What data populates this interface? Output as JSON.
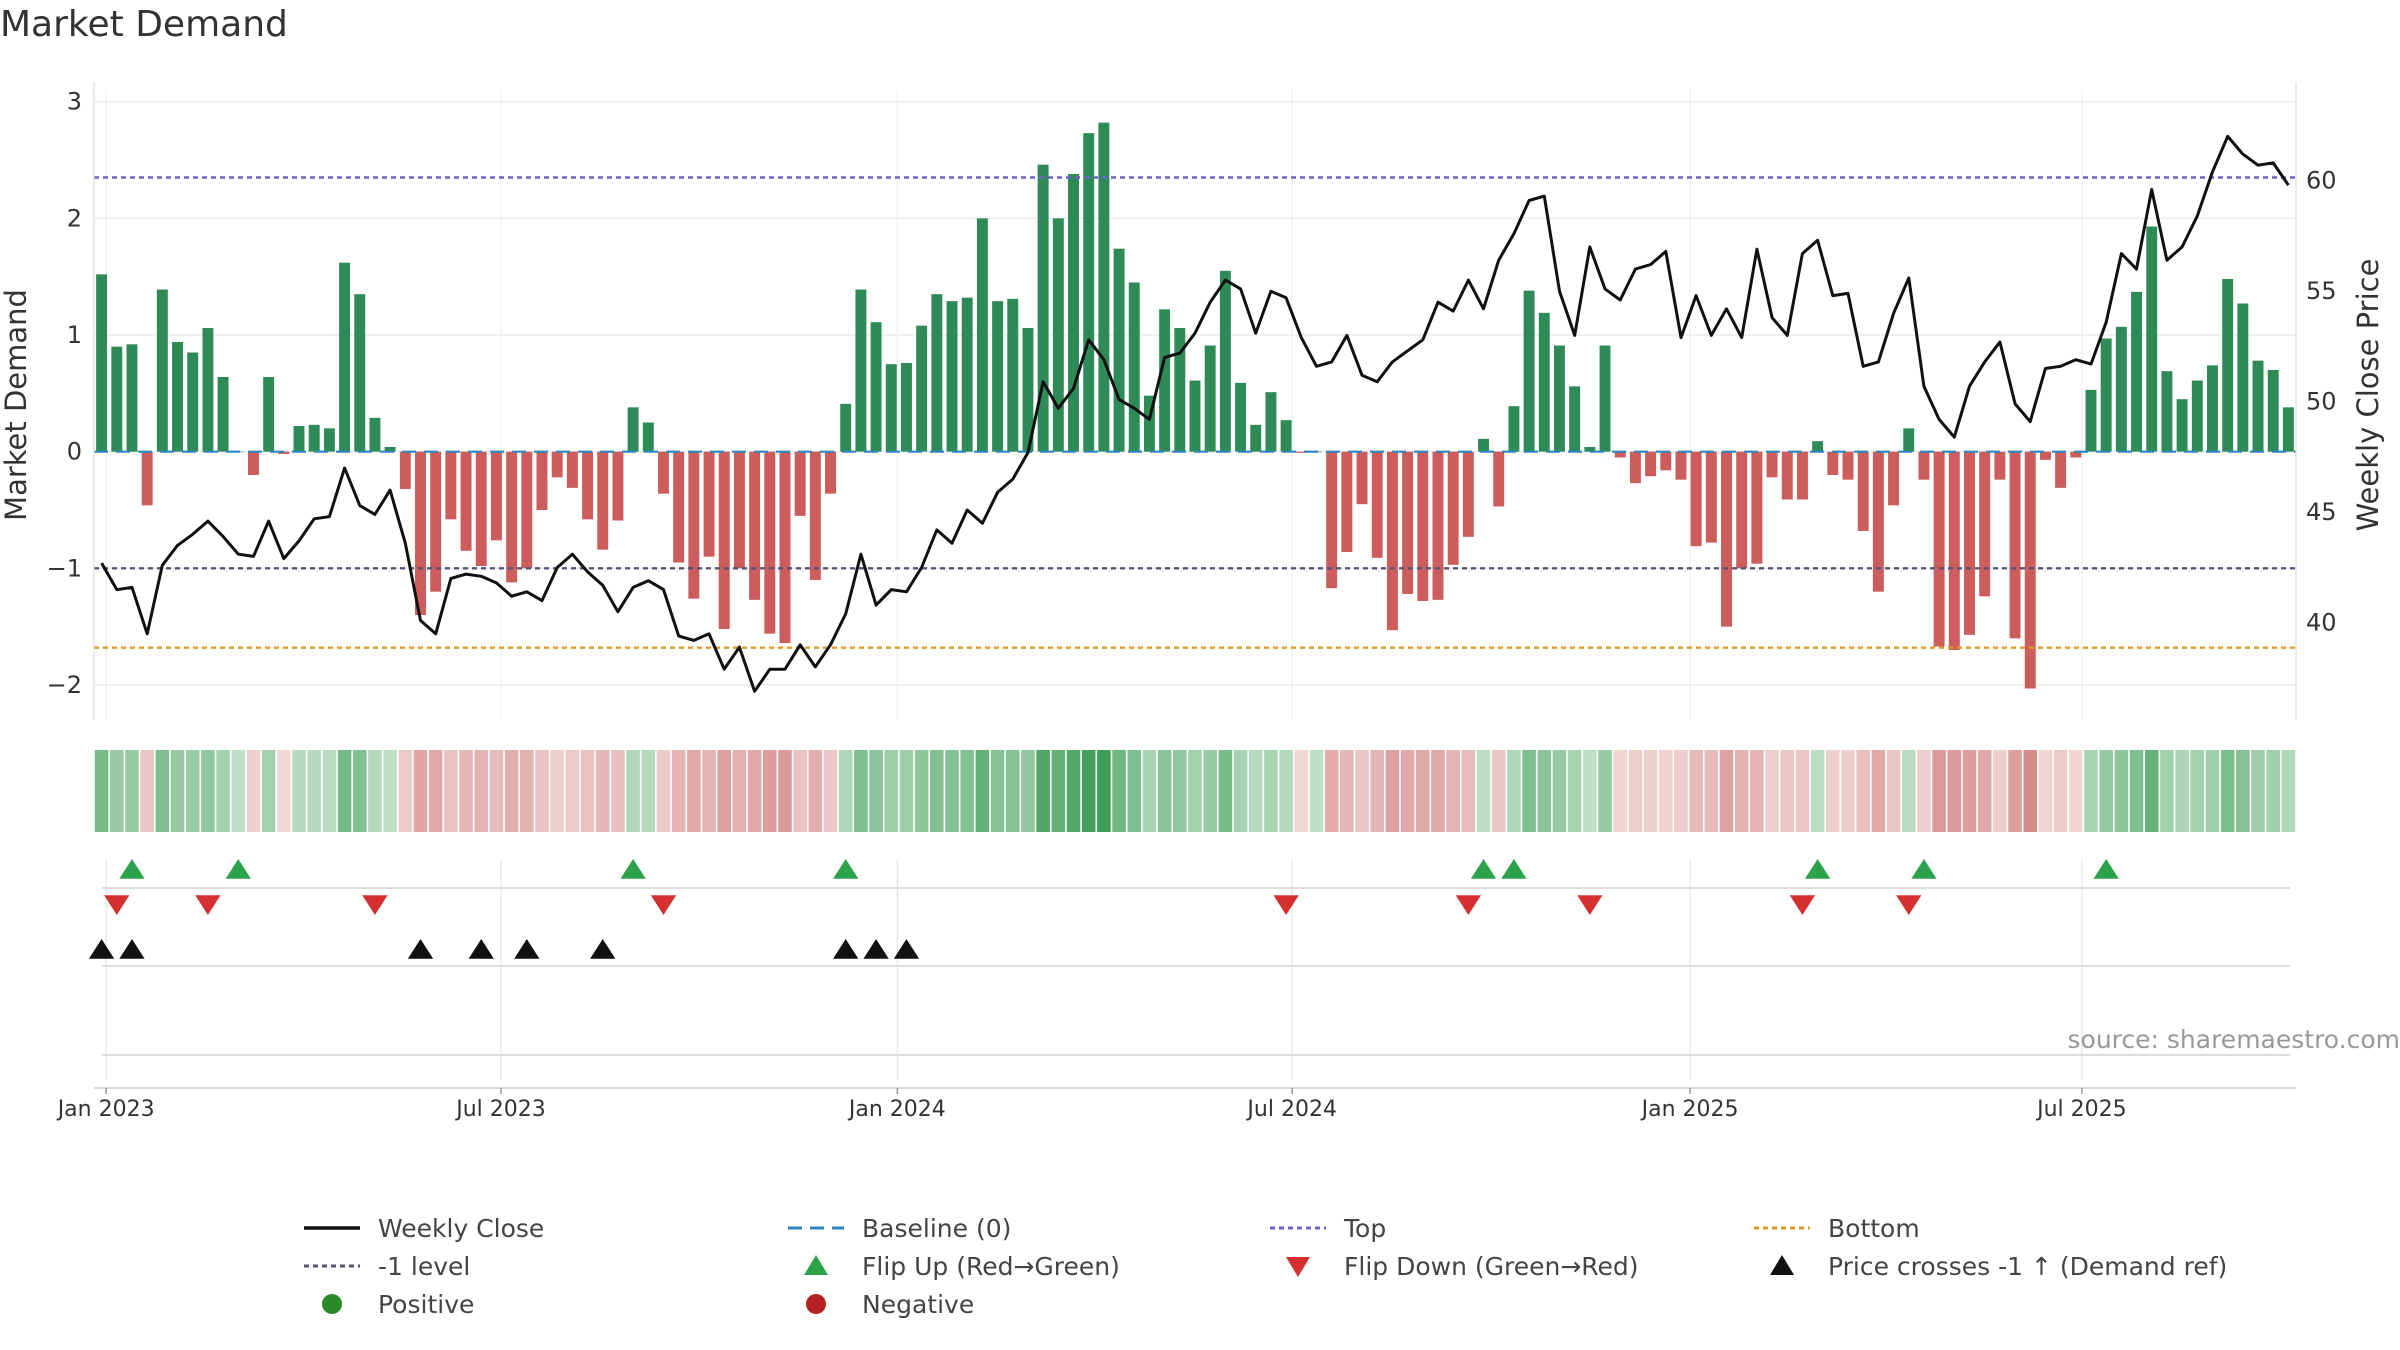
{
  "title": "Market Demand",
  "source": "source: sharemaestro.com",
  "legend": [
    {
      "label": "Weekly Close",
      "symbol": "line-solid",
      "color": "#111111"
    },
    {
      "label": "Baseline (0)",
      "symbol": "line-dash",
      "color": "#2e86c1"
    },
    {
      "label": "Top",
      "symbol": "line-dot",
      "color": "#6c63c7"
    },
    {
      "label": "Bottom",
      "symbol": "line-dot",
      "color": "#e39a22"
    },
    {
      "label": "-1 level",
      "symbol": "line-dot",
      "color": "#555577"
    },
    {
      "label": "Flip Up (Red→Green)",
      "symbol": "tri-up",
      "color": "#2ca24a"
    },
    {
      "label": "Flip Down (Green→Red)",
      "symbol": "tri-down",
      "color": "#d62f2f"
    },
    {
      "label": "Price crosses -1 ↑ (Demand ref)",
      "symbol": "tri-up",
      "color": "#111111"
    },
    {
      "label": "Positive",
      "symbol": "dot",
      "color": "#2a8a2a"
    },
    {
      "label": "Negative",
      "symbol": "dot",
      "color": "#b22424"
    }
  ],
  "colors": {
    "positive": "#2e8b57",
    "negative": "#cd5c5c",
    "price": "#111111",
    "top": "#6c63c7",
    "bottom": "#e39a22",
    "minus1": "#555577",
    "baseline": "#2e86c1",
    "flip_up": "#2ca24a",
    "flip_down": "#d62f2f",
    "cross": "#111111",
    "grid": "#e6e6e6"
  },
  "chart_data": {
    "type": "bar",
    "ylabel": "Market Demand",
    "y2label": "Weekly Close Price",
    "ylim": [
      -2.3,
      3.1
    ],
    "yticks": [
      -2,
      -1,
      0,
      1,
      2,
      3
    ],
    "y2lim": [
      35.6,
      64.1
    ],
    "y2ticks": [
      40,
      45,
      50,
      55,
      60
    ],
    "top_level": 2.35,
    "bottom_level": -1.68,
    "minus1_level": -1.0,
    "xticks": [
      "Jan 2023",
      "Jul 2023",
      "Jan 2024",
      "Jul 2024",
      "Jan 2025",
      "Jul 2025"
    ],
    "demand": [
      1.52,
      0.9,
      0.92,
      -0.46,
      1.39,
      0.94,
      0.85,
      1.06,
      0.64,
      0.0,
      -0.2,
      0.64,
      -0.02,
      0.22,
      0.23,
      0.2,
      1.62,
      1.35,
      0.29,
      0.04,
      -0.32,
      -1.4,
      -1.2,
      -0.58,
      -0.85,
      -0.98,
      -0.76,
      -1.12,
      -1.0,
      -0.5,
      -0.22,
      -0.31,
      -0.58,
      -0.84,
      -0.59,
      0.38,
      0.25,
      -0.36,
      -0.95,
      -1.26,
      -0.9,
      -1.52,
      -1.0,
      -1.27,
      -1.56,
      -1.64,
      -0.55,
      -1.1,
      -0.36,
      0.41,
      1.39,
      1.11,
      0.75,
      0.76,
      1.08,
      1.35,
      1.29,
      1.32,
      2.0,
      1.29,
      1.31,
      1.06,
      2.46,
      2.0,
      2.38,
      2.73,
      2.82,
      1.74,
      1.45,
      0.48,
      1.22,
      1.06,
      0.61,
      0.91,
      1.55,
      0.59,
      0.23,
      0.51,
      0.27,
      -0.01,
      0.0,
      -1.17,
      -0.86,
      -0.45,
      -0.91,
      -1.53,
      -1.22,
      -1.28,
      -1.27,
      -0.97,
      -0.73,
      0.11,
      -0.47,
      0.39,
      1.38,
      1.19,
      0.91,
      0.56,
      0.04,
      0.91,
      -0.05,
      -0.27,
      -0.21,
      -0.16,
      -0.24,
      -0.81,
      -0.78,
      -1.5,
      -1.0,
      -0.96,
      -0.22,
      -0.41,
      -0.41,
      0.09,
      -0.2,
      -0.24,
      -0.68,
      -1.2,
      -0.46,
      0.2,
      -0.24,
      -1.67,
      -1.7,
      -1.57,
      -1.24,
      -0.24,
      -1.6,
      -2.03,
      -0.07,
      -0.31,
      -0.05,
      0.53,
      0.97,
      1.07,
      1.37,
      1.93,
      0.69,
      0.45,
      0.61,
      0.74,
      1.48,
      1.27,
      0.78,
      0.7,
      0.38
    ],
    "price": [
      42.7,
      41.5,
      41.6,
      39.5,
      42.6,
      43.5,
      44.0,
      44.6,
      43.9,
      43.1,
      43.0,
      44.6,
      42.9,
      43.7,
      44.7,
      44.8,
      47.0,
      45.3,
      44.9,
      46.0,
      43.6,
      40.1,
      39.5,
      42.0,
      42.2,
      42.1,
      41.8,
      41.2,
      41.4,
      41.0,
      42.5,
      43.1,
      42.3,
      41.7,
      40.5,
      41.6,
      41.9,
      41.5,
      39.4,
      39.2,
      39.5,
      37.9,
      38.9,
      36.9,
      37.9,
      37.9,
      39.0,
      38.0,
      39.0,
      40.4,
      43.1,
      40.8,
      41.5,
      41.4,
      42.5,
      44.2,
      43.6,
      45.1,
      44.5,
      45.9,
      46.5,
      47.7,
      50.9,
      49.7,
      50.6,
      52.8,
      51.9,
      50.1,
      49.7,
      49.2,
      52.0,
      52.2,
      53.1,
      54.5,
      55.5,
      55.1,
      53.1,
      55.0,
      54.7,
      52.9,
      51.6,
      51.8,
      53.0,
      51.2,
      50.9,
      51.8,
      52.3,
      52.8,
      54.5,
      54.1,
      55.5,
      54.2,
      56.4,
      57.6,
      59.1,
      59.3,
      55.0,
      53.0,
      57.0,
      55.1,
      54.6,
      56.0,
      56.2,
      56.8,
      52.9,
      54.8,
      53.0,
      54.2,
      52.9,
      56.9,
      53.8,
      53.0,
      56.7,
      57.3,
      54.8,
      54.9,
      51.6,
      51.8,
      54.0,
      55.6,
      50.7,
      49.2,
      48.4,
      50.7,
      51.8,
      52.7,
      49.9,
      49.1,
      51.5,
      51.6,
      51.9,
      51.7,
      53.6,
      56.7,
      56.0,
      59.6,
      56.4,
      57.0,
      58.4,
      60.4,
      62.0,
      61.2,
      60.7,
      60.8,
      59.8
    ],
    "flip_up_weeks": [
      2,
      9,
      35,
      49,
      91,
      93,
      113,
      120,
      132
    ],
    "flip_down_weeks": [
      1,
      7,
      18,
      37,
      78,
      90,
      98,
      112,
      119
    ],
    "cross_weeks": [
      0,
      2,
      21,
      25,
      28,
      33,
      49,
      51,
      53
    ]
  }
}
